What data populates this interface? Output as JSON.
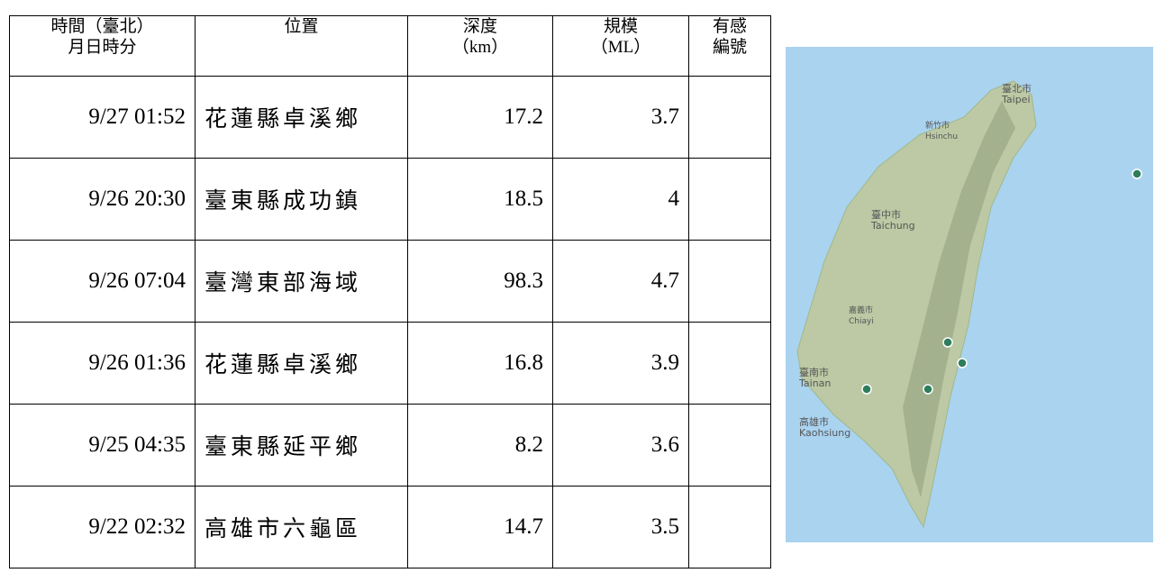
{
  "table": {
    "columns": [
      {
        "lines": [
          "時間（臺北）",
          "月日時分"
        ]
      },
      {
        "lines": [
          "位置"
        ]
      },
      {
        "lines": [
          "深度",
          "（km）"
        ]
      },
      {
        "lines": [
          "規模",
          "（ML）"
        ]
      },
      {
        "lines": [
          "有感",
          "編號"
        ]
      }
    ],
    "rows": [
      [
        "9/27 01:52",
        "花蓮縣卓溪鄉",
        17.2,
        3.7,
        null
      ],
      [
        "9/26 20:30",
        "臺東縣成功鎮",
        18.5,
        4,
        null
      ],
      [
        "9/26 07:04",
        "臺灣東部海域",
        98.3,
        4.7,
        null
      ],
      [
        "9/26 01:36",
        "花蓮縣卓溪鄉",
        16.8,
        3.9,
        null
      ],
      [
        "9/25 04:35",
        "臺東縣延平鄉",
        8.2,
        3.6,
        null
      ],
      [
        "9/22 02:32",
        "高雄市六龜區",
        14.7,
        3.5,
        null
      ]
    ]
  },
  "map": {
    "labels": [
      {
        "zh": "臺北市",
        "en": "Taipei"
      },
      {
        "zh": "新竹市",
        "en": "Hsinchu"
      },
      {
        "zh": "臺中市",
        "en": "Taichung"
      },
      {
        "zh": "嘉義市",
        "en": "Chiayi"
      },
      {
        "zh": "臺南市",
        "en": "Tainan"
      },
      {
        "zh": "高雄市",
        "en": "Kaohsiung"
      }
    ]
  }
}
